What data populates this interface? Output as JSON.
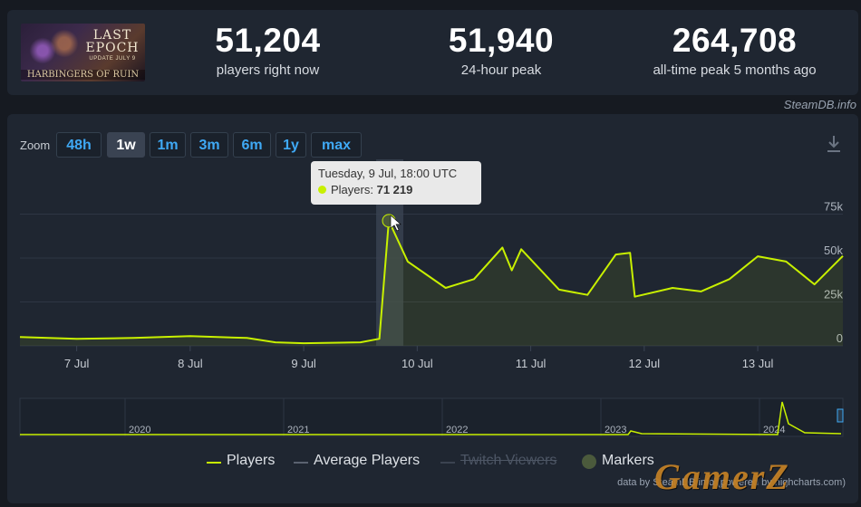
{
  "game": {
    "cover_title": "LAST EPOCH",
    "cover_update": "UPDATE JULY 9",
    "cover_subtitle": "HARBINGERS OF RUIN"
  },
  "stats": [
    {
      "value": "51,204",
      "label": "players right now"
    },
    {
      "value": "51,940",
      "label": "24-hour peak"
    },
    {
      "value": "264,708",
      "label": "all-time peak 5 months ago"
    }
  ],
  "source_label": "SteamDB.info",
  "zoom": {
    "label": "Zoom",
    "options": [
      "48h",
      "1w",
      "1m",
      "3m",
      "6m",
      "1y",
      "max"
    ],
    "active": "1w"
  },
  "tooltip": {
    "date": "Tuesday, 9 Jul, 18:00 UTC",
    "series": "Players:",
    "value": "71 219"
  },
  "legend": [
    {
      "name": "Players",
      "color": "#c8f000",
      "enabled": true
    },
    {
      "name": "Average Players",
      "color": "#5a6270",
      "enabled": true
    },
    {
      "name": "Twitch Viewers",
      "color": "#3b4350",
      "enabled": false
    },
    {
      "name": "Markers",
      "color": "#4b5a3c",
      "enabled": true
    }
  ],
  "credit": "data by SteamDB.info (powered by highcharts.com)",
  "watermark": "GamerZ",
  "colors": {
    "players": "#c8f000",
    "accent": "#3fa9f5",
    "background": "#161a21",
    "card": "#1f2631"
  },
  "chart_data": {
    "type": "line",
    "series": [
      {
        "name": "Players",
        "x": [
          "6 Jul 12:00",
          "7 Jul 00:00",
          "7 Jul 12:00",
          "8 Jul 00:00",
          "8 Jul 12:00",
          "8 Jul 18:00",
          "9 Jul 00:00",
          "9 Jul 12:00",
          "9 Jul 16:00",
          "9 Jul 18:00",
          "9 Jul 22:00",
          "10 Jul 06:00",
          "10 Jul 12:00",
          "10 Jul 18:00",
          "10 Jul 20:00",
          "10 Jul 22:00",
          "11 Jul 06:00",
          "11 Jul 12:00",
          "11 Jul 18:00",
          "11 Jul 21:00",
          "11 Jul 22:00",
          "12 Jul 06:00",
          "12 Jul 12:00",
          "12 Jul 18:00",
          "13 Jul 00:00",
          "13 Jul 06:00",
          "13 Jul 12:00",
          "13 Jul 18:00"
        ],
        "y": [
          5000,
          4000,
          4500,
          5500,
          4500,
          2000,
          1500,
          2000,
          4000,
          71219,
          48000,
          33000,
          38000,
          56000,
          43000,
          55000,
          32000,
          29000,
          52000,
          53000,
          28000,
          33000,
          31000,
          38000,
          51000,
          48000,
          35000,
          51204
        ]
      }
    ],
    "xticks": [
      "7 Jul",
      "8 Jul",
      "9 Jul",
      "10 Jul",
      "11 Jul",
      "12 Jul",
      "13 Jul"
    ],
    "yticks": [
      "0",
      "25k",
      "50k",
      "75k"
    ],
    "ylim": [
      0,
      100000
    ],
    "grid": true,
    "navigator_years": [
      "2020",
      "2021",
      "2022",
      "2023",
      "2024"
    ]
  }
}
